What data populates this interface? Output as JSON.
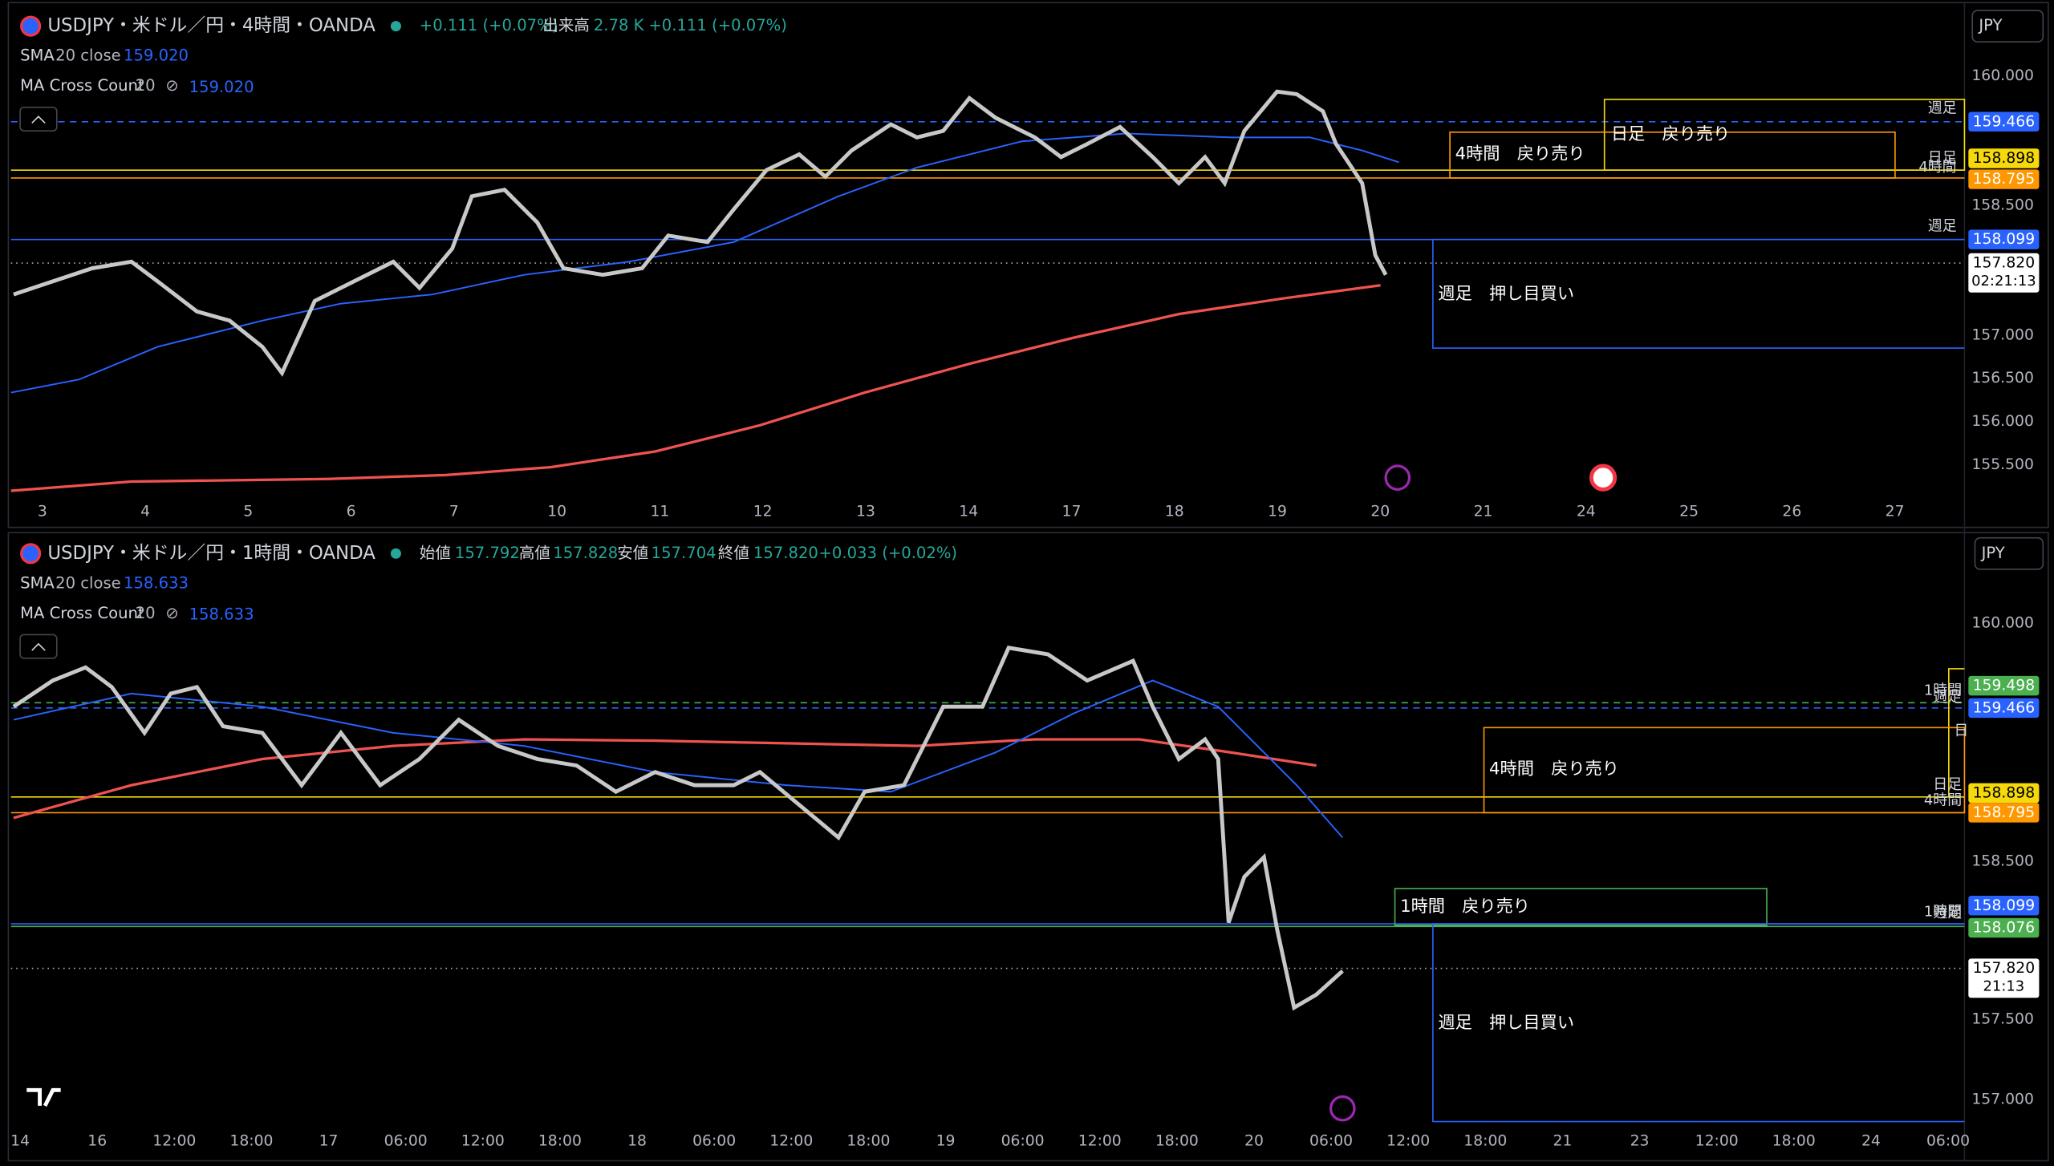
{
  "top": {
    "title": "USDJPY・米ドル／円・4時間・OANDA",
    "change": "+0.111 (+0.07%)",
    "volume_label": "出来高",
    "volume": "2.78 K",
    "volume_change": "+0.111 (+0.07%)",
    "indicators": [
      {
        "name": "SMA",
        "params": "20 close",
        "value": "159.020"
      },
      {
        "name": "MA Cross Count",
        "params": "20",
        "value": "159.020"
      }
    ],
    "currency": "JPY",
    "price_axis": [
      "160.000",
      "158.500",
      "157.000",
      "156.500",
      "156.000",
      "155.500"
    ],
    "price_tags": [
      {
        "price": "159.466"
      },
      {
        "price": "158.898"
      },
      {
        "price": "158.795"
      },
      {
        "price": "158.099"
      },
      {
        "price": "157.820",
        "countdown": "02:21:13"
      }
    ],
    "time_axis": [
      "3",
      "4",
      "5",
      "6",
      "7",
      "10",
      "11",
      "12",
      "13",
      "14",
      "17",
      "18",
      "19",
      "20",
      "21",
      "24",
      "25",
      "26",
      "27"
    ],
    "zones": [
      "4時間　戻り売り",
      "日足　戻り売り",
      "週足　押し目買い"
    ],
    "level_labels": [
      "週足",
      "日足",
      "4時間",
      "週足"
    ]
  },
  "bottom": {
    "title": "USDJPY・米ドル／円・1時間・OANDA",
    "ohlc": [
      {
        "label": "始値",
        "value": "157.792"
      },
      {
        "label": "高値",
        "value": "157.828"
      },
      {
        "label": "安値",
        "value": "157.704"
      },
      {
        "label": "終値",
        "value": "157.820"
      }
    ],
    "change": "+0.033 (+0.02%)",
    "indicators": [
      {
        "name": "SMA",
        "params": "20 close",
        "value": "158.633"
      },
      {
        "name": "MA Cross Count",
        "params": "20",
        "value": "158.633"
      }
    ],
    "currency": "JPY",
    "price_axis": [
      "160.000",
      "158.500",
      "157.500",
      "157.000"
    ],
    "price_tags": [
      {
        "price": "159.498"
      },
      {
        "price": "159.466"
      },
      {
        "price": "158.898"
      },
      {
        "price": "158.795"
      },
      {
        "price": "158.099"
      },
      {
        "price": "158.076"
      },
      {
        "price": "157.820",
        "countdown": "21:13"
      }
    ],
    "time_axis": [
      "14",
      "16",
      "12:00",
      "18:00",
      "17",
      "06:00",
      "12:00",
      "18:00",
      "18",
      "06:00",
      "12:00",
      "18:00",
      "19",
      "06:00",
      "12:00",
      "18:00",
      "20",
      "06:00",
      "12:00",
      "18:00",
      "21",
      "23",
      "12:00",
      "18:00",
      "24",
      "06:00"
    ],
    "zones": [
      "4時間　戻り売り",
      "1時間　戻り売り",
      "週足　押し目買い"
    ],
    "level_labels": [
      "1時間",
      "週足",
      "日",
      "日足",
      "4時間",
      "1時間",
      "週足"
    ]
  }
}
